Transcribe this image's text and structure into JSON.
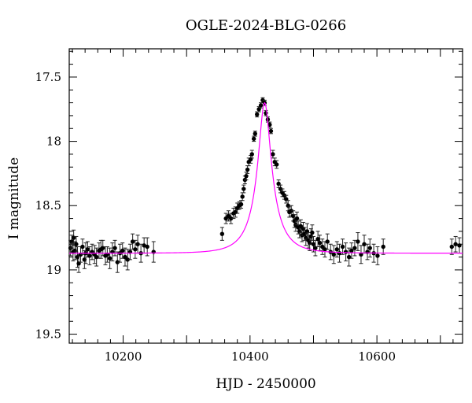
{
  "chart_data": {
    "type": "scatter",
    "title": "OGLE-2024-BLG-0266",
    "xlabel": "HJD - 2450000",
    "ylabel": "I magnitude",
    "xlim": [
      10115,
      10735
    ],
    "ylim": [
      19.57,
      17.28
    ],
    "y_inverted": true,
    "x_ticks": [
      10200,
      10400,
      10600
    ],
    "y_ticks": [
      17.5,
      18,
      18.5,
      19,
      19.5
    ],
    "grid": false,
    "colors": {
      "model": "#ff00ff",
      "points": "#000000"
    },
    "series": [
      {
        "kind": "points_with_errorbars",
        "x": [
          10117,
          10119,
          10121,
          10122,
          10124,
          10126,
          10128,
          10130,
          10133,
          10136,
          10139,
          10141,
          10144,
          10147,
          10151,
          10155,
          10158,
          10162,
          10165,
          10168,
          10172,
          10175,
          10179,
          10183,
          10187,
          10191,
          10195,
          10199,
          10203,
          10207,
          10211,
          10215,
          10219,
          10223,
          10228,
          10233,
          10238,
          10248,
          10356,
          10362,
          10366,
          10370,
          10374,
          10377,
          10380,
          10383,
          10386,
          10388,
          10390,
          10392,
          10394,
          10396,
          10398,
          10401,
          10403,
          10406,
          10408,
          10411,
          10414,
          10417,
          10420,
          10423,
          10425,
          10428,
          10431,
          10433,
          10436,
          10439,
          10442,
          10445,
          10448,
          10451,
          10454,
          10457,
          10460,
          10462,
          10465,
          10468,
          10470,
          10472,
          10474,
          10476,
          10478,
          10480,
          10482,
          10484,
          10486,
          10488,
          10490,
          10492,
          10494,
          10496,
          10498,
          10500,
          10503,
          10507,
          10510,
          10514,
          10518,
          10522,
          10527,
          10532,
          10537,
          10541,
          10546,
          10551,
          10556,
          10560,
          10565,
          10570,
          10575,
          10580,
          10585,
          10589,
          10595,
          10601,
          10610,
          10718,
          10724,
          10730
        ],
        "y": [
          18.83,
          18.78,
          18.86,
          18.75,
          18.85,
          18.8,
          18.9,
          18.95,
          18.88,
          18.82,
          18.92,
          18.87,
          18.84,
          18.89,
          18.86,
          18.88,
          18.9,
          18.85,
          18.84,
          18.83,
          18.89,
          18.88,
          18.91,
          18.86,
          18.83,
          18.94,
          18.87,
          18.85,
          18.9,
          18.92,
          18.86,
          18.78,
          18.84,
          18.8,
          18.87,
          18.81,
          18.82,
          18.86,
          18.72,
          18.6,
          18.58,
          18.6,
          18.56,
          18.55,
          18.52,
          18.5,
          18.49,
          18.43,
          18.37,
          18.3,
          18.27,
          18.22,
          18.16,
          18.14,
          18.1,
          17.98,
          17.94,
          17.79,
          17.75,
          17.72,
          17.68,
          17.7,
          17.78,
          17.83,
          17.87,
          17.92,
          18.1,
          18.16,
          18.18,
          18.33,
          18.37,
          18.4,
          18.42,
          18.45,
          18.5,
          18.55,
          18.54,
          18.58,
          18.62,
          18.65,
          18.6,
          18.67,
          18.7,
          18.66,
          18.73,
          18.68,
          18.72,
          18.75,
          18.7,
          18.77,
          18.79,
          18.74,
          18.71,
          18.8,
          18.83,
          18.76,
          18.79,
          18.82,
          18.84,
          18.78,
          18.86,
          18.88,
          18.84,
          18.87,
          18.82,
          18.86,
          18.9,
          18.85,
          18.83,
          18.78,
          18.88,
          18.8,
          18.86,
          18.83,
          18.87,
          18.89,
          18.82,
          18.82,
          18.8,
          18.81
        ],
        "err": [
          0.06,
          0.05,
          0.07,
          0.06,
          0.07,
          0.06,
          0.08,
          0.07,
          0.06,
          0.06,
          0.07,
          0.08,
          0.06,
          0.07,
          0.06,
          0.07,
          0.07,
          0.06,
          0.07,
          0.06,
          0.07,
          0.06,
          0.08,
          0.07,
          0.06,
          0.08,
          0.07,
          0.06,
          0.07,
          0.08,
          0.06,
          0.06,
          0.07,
          0.07,
          0.07,
          0.06,
          0.07,
          0.08,
          0.05,
          0.04,
          0.04,
          0.04,
          0.04,
          0.04,
          0.04,
          0.03,
          0.03,
          0.03,
          0.03,
          0.03,
          0.03,
          0.03,
          0.03,
          0.03,
          0.03,
          0.02,
          0.02,
          0.02,
          0.02,
          0.02,
          0.02,
          0.02,
          0.02,
          0.02,
          0.02,
          0.02,
          0.03,
          0.03,
          0.03,
          0.03,
          0.03,
          0.03,
          0.03,
          0.03,
          0.04,
          0.04,
          0.04,
          0.04,
          0.05,
          0.05,
          0.05,
          0.05,
          0.05,
          0.05,
          0.05,
          0.05,
          0.05,
          0.06,
          0.06,
          0.06,
          0.06,
          0.06,
          0.06,
          0.06,
          0.06,
          0.06,
          0.06,
          0.06,
          0.06,
          0.06,
          0.06,
          0.07,
          0.06,
          0.07,
          0.06,
          0.07,
          0.07,
          0.06,
          0.06,
          0.07,
          0.07,
          0.07,
          0.06,
          0.07,
          0.07,
          0.07,
          0.06,
          0.06,
          0.06,
          0.06
        ]
      },
      {
        "kind": "model_curve",
        "peak_time": 10423,
        "baseline_mag": 18.87,
        "peak_mag": 17.7
      }
    ]
  }
}
